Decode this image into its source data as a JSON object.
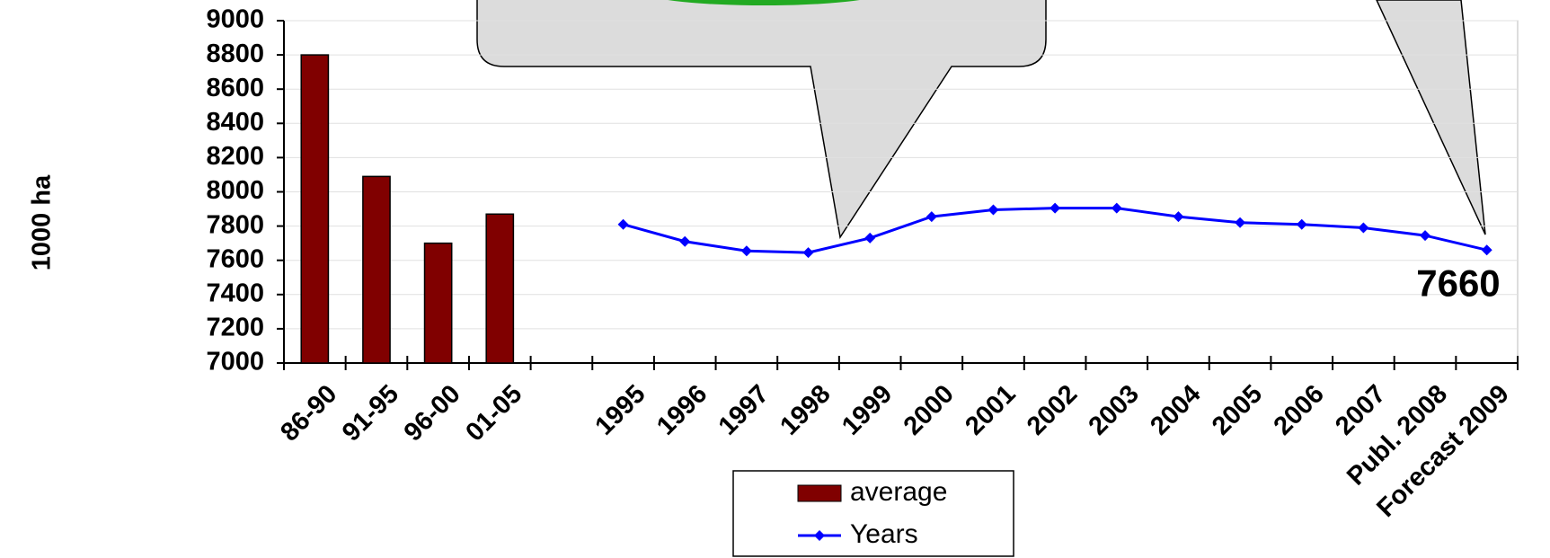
{
  "chart_data": {
    "type": "bar-line",
    "y_label": "1000 ha",
    "categories": [
      "86-90",
      "91-95",
      "96-00",
      "01-05",
      null,
      "1995",
      "1996",
      "1997",
      "1998",
      "1999",
      "2000",
      "2001",
      "2002",
      "2003",
      "2004",
      "2005",
      "2006",
      "2007",
      "Publ. 2008",
      "Forecast 2009"
    ],
    "series": [
      {
        "name": "average",
        "color": "#800000",
        "type": "bar",
        "values": [
          8800,
          8090,
          7700,
          7870,
          null,
          null,
          null,
          null,
          null,
          null,
          null,
          null,
          null,
          null,
          null,
          null,
          null,
          null,
          null,
          null
        ]
      },
      {
        "name": "Years",
        "color": "#0000ff",
        "type": "line",
        "values": [
          null,
          null,
          null,
          null,
          null,
          7810,
          7710,
          7655,
          7645,
          7730,
          7855,
          7895,
          7905,
          7905,
          7855,
          7820,
          7810,
          7790,
          7745,
          7660
        ]
      }
    ],
    "ylim": [
      7000,
      9000
    ],
    "yticks": [
      7000,
      7200,
      7400,
      7600,
      7800,
      8000,
      8200,
      8400,
      8600,
      8800,
      9000
    ],
    "grid": true
  }
}
